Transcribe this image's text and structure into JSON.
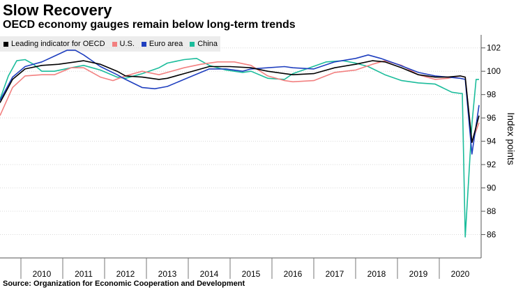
{
  "title": "Slow Recovery",
  "subtitle": "OECD economy gauges remain below long-term trends",
  "source": "Source: Organization for Economic Cooperation and Development",
  "chart_data": {
    "type": "line",
    "ylabel": "Index points",
    "ylim": [
      84,
      103
    ],
    "xlim": [
      2009.0,
      2020.5
    ],
    "yticks": [
      86,
      88,
      90,
      92,
      94,
      96,
      98,
      100,
      102
    ],
    "xtick_labels": [
      "2010",
      "2011",
      "2012",
      "2013",
      "2014",
      "2015",
      "2016",
      "2017",
      "2018",
      "2019",
      "2020"
    ],
    "y_axis_position": "right",
    "grid": "horizontal",
    "legend_position": "top-left",
    "series": [
      {
        "name": "Leading indicator for OECD",
        "color": "#000000",
        "points": [
          [
            2009.0,
            97.3
          ],
          [
            2009.3,
            99.3
          ],
          [
            2009.6,
            100.2
          ],
          [
            2010.0,
            100.5
          ],
          [
            2010.4,
            100.6
          ],
          [
            2010.8,
            100.8
          ],
          [
            2011.0,
            100.9
          ],
          [
            2011.4,
            100.6
          ],
          [
            2011.8,
            100.0
          ],
          [
            2012.0,
            99.6
          ],
          [
            2012.4,
            99.5
          ],
          [
            2012.8,
            99.3
          ],
          [
            2013.0,
            99.4
          ],
          [
            2013.4,
            99.8
          ],
          [
            2013.8,
            100.2
          ],
          [
            2014.0,
            100.4
          ],
          [
            2014.5,
            100.4
          ],
          [
            2015.0,
            100.3
          ],
          [
            2015.4,
            100.0
          ],
          [
            2015.8,
            99.8
          ],
          [
            2016.0,
            99.7
          ],
          [
            2016.5,
            99.8
          ],
          [
            2017.0,
            100.3
          ],
          [
            2017.5,
            100.6
          ],
          [
            2017.9,
            100.9
          ],
          [
            2018.2,
            100.8
          ],
          [
            2018.6,
            100.3
          ],
          [
            2019.0,
            99.7
          ],
          [
            2019.4,
            99.5
          ],
          [
            2019.7,
            99.5
          ],
          [
            2020.0,
            99.6
          ],
          [
            2020.12,
            99.5
          ],
          [
            2020.28,
            93.9
          ],
          [
            2020.45,
            96.2
          ]
        ]
      },
      {
        "name": "U.S.",
        "color": "#f28080",
        "points": [
          [
            2009.0,
            96.2
          ],
          [
            2009.3,
            98.6
          ],
          [
            2009.6,
            99.6
          ],
          [
            2010.0,
            99.7
          ],
          [
            2010.3,
            99.7
          ],
          [
            2010.7,
            100.3
          ],
          [
            2011.0,
            100.3
          ],
          [
            2011.4,
            99.5
          ],
          [
            2011.7,
            99.2
          ],
          [
            2012.0,
            99.6
          ],
          [
            2012.4,
            100.0
          ],
          [
            2012.8,
            99.7
          ],
          [
            2013.0,
            99.9
          ],
          [
            2013.4,
            100.3
          ],
          [
            2013.8,
            100.6
          ],
          [
            2014.2,
            100.8
          ],
          [
            2014.6,
            100.8
          ],
          [
            2015.0,
            100.5
          ],
          [
            2015.4,
            99.6
          ],
          [
            2015.8,
            99.2
          ],
          [
            2016.0,
            99.1
          ],
          [
            2016.5,
            99.2
          ],
          [
            2017.0,
            99.9
          ],
          [
            2017.5,
            100.1
          ],
          [
            2017.9,
            100.6
          ],
          [
            2018.2,
            100.9
          ],
          [
            2018.6,
            100.5
          ],
          [
            2019.0,
            99.7
          ],
          [
            2019.4,
            99.3
          ],
          [
            2019.7,
            99.4
          ],
          [
            2020.0,
            99.6
          ],
          [
            2020.12,
            99.5
          ],
          [
            2020.28,
            93.9
          ],
          [
            2020.45,
            95.6
          ]
        ]
      },
      {
        "name": "Euro area",
        "color": "#1f3fbf",
        "points": [
          [
            2009.0,
            97.5
          ],
          [
            2009.3,
            99.5
          ],
          [
            2009.6,
            100.4
          ],
          [
            2010.0,
            100.8
          ],
          [
            2010.3,
            101.3
          ],
          [
            2010.6,
            101.8
          ],
          [
            2010.8,
            101.8
          ],
          [
            2011.0,
            101.4
          ],
          [
            2011.4,
            100.4
          ],
          [
            2011.8,
            99.7
          ],
          [
            2012.0,
            99.3
          ],
          [
            2012.4,
            98.6
          ],
          [
            2012.7,
            98.5
          ],
          [
            2013.0,
            98.7
          ],
          [
            2013.4,
            99.3
          ],
          [
            2013.8,
            99.9
          ],
          [
            2014.0,
            100.2
          ],
          [
            2014.4,
            100.2
          ],
          [
            2014.8,
            100.0
          ],
          [
            2015.0,
            100.2
          ],
          [
            2015.4,
            100.3
          ],
          [
            2015.8,
            100.4
          ],
          [
            2016.0,
            100.3
          ],
          [
            2016.5,
            100.2
          ],
          [
            2017.0,
            100.8
          ],
          [
            2017.5,
            101.1
          ],
          [
            2017.8,
            101.4
          ],
          [
            2018.1,
            101.1
          ],
          [
            2018.5,
            100.6
          ],
          [
            2019.0,
            99.9
          ],
          [
            2019.4,
            99.6
          ],
          [
            2019.7,
            99.5
          ],
          [
            2020.0,
            99.4
          ],
          [
            2020.12,
            99.3
          ],
          [
            2020.28,
            92.9
          ],
          [
            2020.45,
            97.1
          ]
        ]
      },
      {
        "name": "China",
        "color": "#1bbc9b",
        "points": [
          [
            2009.0,
            97.6
          ],
          [
            2009.2,
            99.6
          ],
          [
            2009.4,
            100.9
          ],
          [
            2009.6,
            101.0
          ],
          [
            2009.8,
            100.6
          ],
          [
            2010.0,
            100.0
          ],
          [
            2010.3,
            100.0
          ],
          [
            2010.7,
            100.3
          ],
          [
            2011.0,
            100.5
          ],
          [
            2011.4,
            100.1
          ],
          [
            2011.8,
            99.5
          ],
          [
            2012.0,
            99.4
          ],
          [
            2012.4,
            99.8
          ],
          [
            2012.8,
            100.3
          ],
          [
            2013.0,
            100.7
          ],
          [
            2013.4,
            101.0
          ],
          [
            2013.7,
            101.1
          ],
          [
            2014.0,
            100.5
          ],
          [
            2014.4,
            100.1
          ],
          [
            2014.8,
            99.9
          ],
          [
            2015.0,
            100.0
          ],
          [
            2015.4,
            99.4
          ],
          [
            2015.8,
            99.3
          ],
          [
            2016.0,
            99.8
          ],
          [
            2016.4,
            100.3
          ],
          [
            2016.8,
            100.8
          ],
          [
            2017.2,
            100.9
          ],
          [
            2017.5,
            100.7
          ],
          [
            2017.8,
            100.4
          ],
          [
            2018.2,
            99.7
          ],
          [
            2018.6,
            99.2
          ],
          [
            2019.0,
            99.0
          ],
          [
            2019.4,
            98.9
          ],
          [
            2019.8,
            98.2
          ],
          [
            2020.0,
            98.1
          ],
          [
            2020.05,
            98.1
          ],
          [
            2020.12,
            85.8
          ],
          [
            2020.28,
            95.5
          ],
          [
            2020.38,
            99.3
          ],
          [
            2020.45,
            99.3
          ]
        ]
      }
    ]
  }
}
